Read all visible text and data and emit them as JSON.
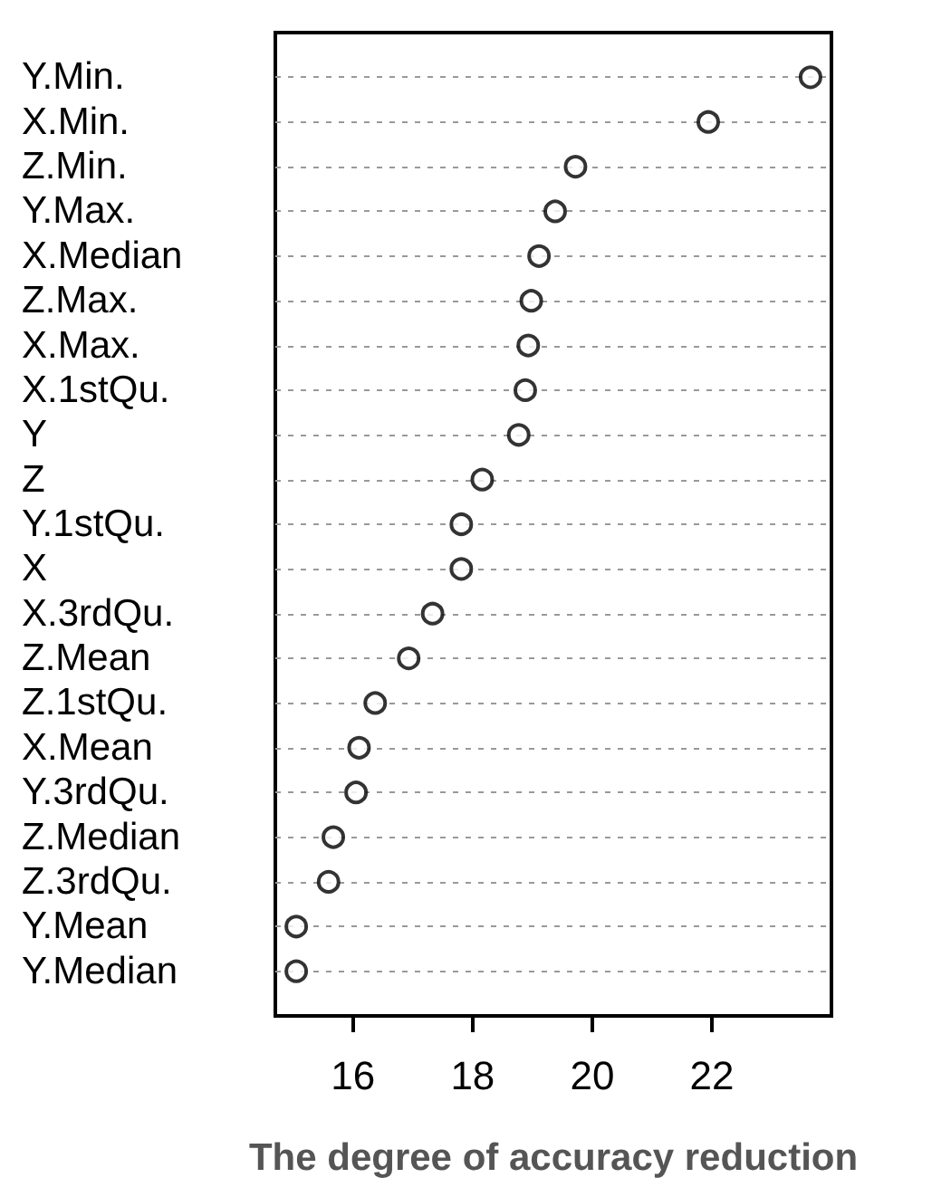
{
  "chart_data": {
    "type": "scatter",
    "xlabel": "The degree of accuracy reduction",
    "categories": [
      "Y.Min.",
      "X.Min.",
      "Z.Min.",
      "Y.Max.",
      "X.Median",
      "Z.Max.",
      "X.Max.",
      "X.1stQu.",
      "Y",
      "Z",
      "Y.1stQu.",
      "X",
      "X.3rdQu.",
      "Z.Mean",
      "Z.1stQu.",
      "X.Mean",
      "Y.3rdQu.",
      "Z.Median",
      "Z.3rdQu.",
      "Y.Mean",
      "Y.Median"
    ],
    "orientation": "horizontal",
    "series": [
      {
        "color": "#000000",
        "values": [
          23.65,
          21.94,
          19.72,
          19.38,
          19.11,
          18.98,
          18.93,
          18.88,
          18.77,
          18.16,
          17.81,
          17.81,
          17.33,
          16.93,
          16.37,
          16.1,
          16.05,
          15.67,
          15.59,
          15.05,
          15.05
        ]
      }
    ],
    "xlim": [
      14.7,
      24.0
    ],
    "xticks": [
      16,
      18,
      20,
      22
    ],
    "grid": "y",
    "marker": "circle"
  }
}
